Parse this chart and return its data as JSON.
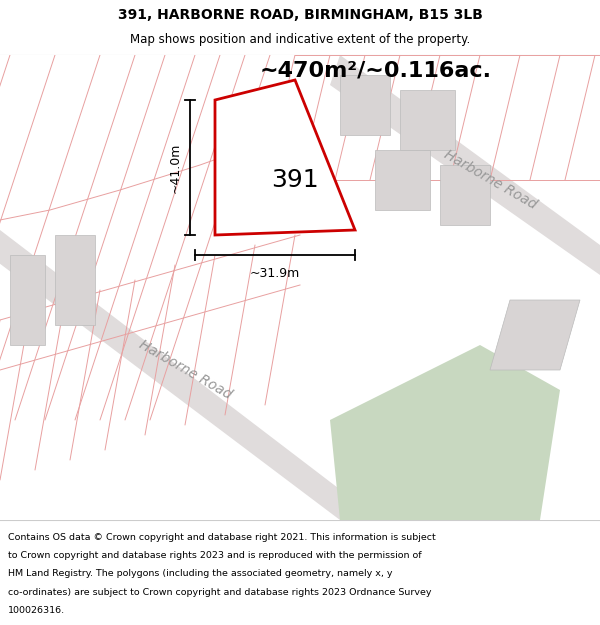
{
  "title": "391, HARBORNE ROAD, BIRMINGHAM, B15 3LB",
  "subtitle": "Map shows position and indicative extent of the property.",
  "area_label": "~470m²/~0.116ac.",
  "property_number": "391",
  "dim_width": "~31.9m",
  "dim_height": "~41.0m",
  "road_label_upper": "Harborne Road",
  "road_label_lower": "Harborne Road",
  "footer_lines": [
    "Contains OS data © Crown copyright and database right 2021. This information is subject",
    "to Crown copyright and database rights 2023 and is reproduced with the permission of",
    "HM Land Registry. The polygons (including the associated geometry, namely x, y",
    "co-ordinates) are subject to Crown copyright and database rights 2023 Ordnance Survey",
    "100026316."
  ],
  "map_bg": "#ffffff",
  "parcel_line_color": "#e8a0a0",
  "parcel_line_color2": "#d08080",
  "plot_line_color": "#cc0000",
  "building_color": "#d8d4d4",
  "building_edge": "#bbbbbb",
  "green_area_color": "#c8d8c0",
  "road_band_color": "#e0dcdc",
  "dim_line_color": "#1a1a1a",
  "road_label_color": "#999999",
  "title_fontsize": 10,
  "subtitle_fontsize": 8.5,
  "area_fontsize": 16,
  "dim_fontsize": 9,
  "number_fontsize": 18
}
